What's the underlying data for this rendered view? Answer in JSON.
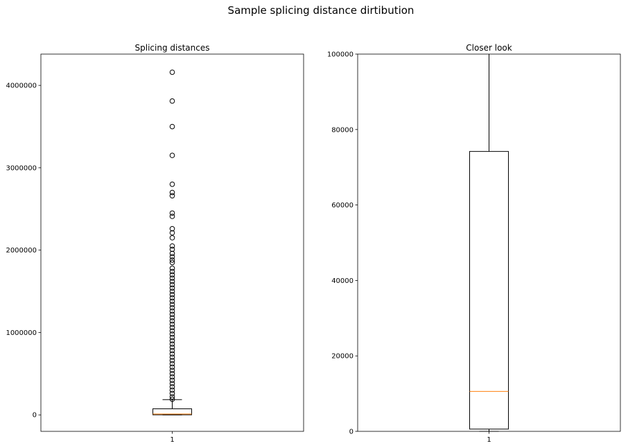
{
  "figure": {
    "suptitle": "Sample splicing distance dirtibution"
  },
  "chart_data": [
    {
      "type": "box",
      "title": "Splicing distances",
      "xlabel": "",
      "ylabel": "",
      "categories": [
        "1"
      ],
      "ylim": [
        -200000,
        4380000
      ],
      "yticks": [
        0,
        1000000,
        2000000,
        3000000,
        4000000
      ],
      "ytick_labels": [
        "0",
        "1000000",
        "2000000",
        "3000000",
        "4000000"
      ],
      "grid": false,
      "stats": {
        "q1": 1000,
        "median": 10500,
        "q3": 74000,
        "whisker_low": 0,
        "whisker_high": 185000
      },
      "fliers": [
        4160000,
        3810000,
        3500000,
        3150000,
        2800000,
        2700000,
        2660000,
        2450000,
        2410000,
        2260000,
        2210000,
        2150000,
        2050000,
        2010000,
        1960000,
        1920000,
        1880000,
        1850000,
        1780000,
        1740000,
        1700000,
        1660000,
        1620000,
        1580000,
        1540000,
        1500000,
        1460000,
        1420000,
        1380000,
        1340000,
        1300000,
        1260000,
        1220000,
        1180000,
        1140000,
        1100000,
        1060000,
        1020000,
        980000,
        940000,
        900000,
        860000,
        820000,
        780000,
        740000,
        700000,
        660000,
        620000,
        580000,
        540000,
        500000,
        460000,
        420000,
        380000,
        340000,
        300000,
        260000,
        220000,
        190000
      ]
    },
    {
      "type": "box",
      "title": "Closer look",
      "xlabel": "",
      "ylabel": "",
      "categories": [
        "1"
      ],
      "ylim": [
        0,
        100000
      ],
      "yticks": [
        0,
        20000,
        40000,
        60000,
        80000,
        100000
      ],
      "ytick_labels": [
        "0",
        "20000",
        "40000",
        "60000",
        "80000",
        "100000"
      ],
      "grid": false,
      "stats": {
        "q1": 600,
        "median": 10600,
        "q3": 74200,
        "whisker_low": 0,
        "whisker_high": 185000
      },
      "fliers": []
    }
  ]
}
